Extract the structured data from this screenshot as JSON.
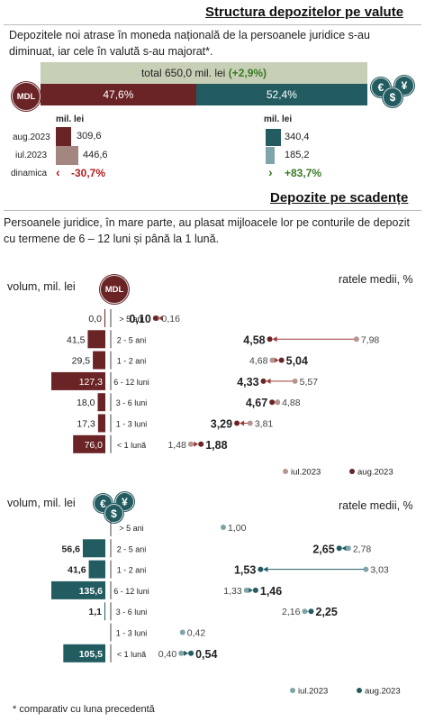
{
  "header": {
    "title": "Structura depozitelor pe valute",
    "intro": "Depozitele noi atrase în moneda națională de la persoanele juridice s-au diminuat, iar cele în valută s-au majorat*.",
    "total_label": "total 650,0 mil. lei",
    "total_change": "(+2,9%)",
    "mdl_share": "47,6%",
    "fx_share": "52,4%",
    "mdl_share_value": 47.6,
    "fx_share_value": 52.4
  },
  "icons": {
    "mdl": "MDL",
    "euro": "€",
    "dollar": "$",
    "yen": "¥"
  },
  "currency_compare": {
    "unit_left": "mil. lei",
    "unit_right": "mil. lei",
    "rows": [
      {
        "label": "aug.2023",
        "mdl": "309,6",
        "fx": "340,4",
        "mdl_v": 309.6,
        "fx_v": 340.4
      },
      {
        "label": "iul.2023",
        "mdl": "446,6",
        "fx": "185,2",
        "mdl_v": 446.6,
        "fx_v": 185.2
      }
    ],
    "dyn_label": "dinamica",
    "dyn_mdl": "-30,7%",
    "dyn_fx": "+83,7%"
  },
  "section2": {
    "title": "Depozite pe scadențe",
    "intro": "Persoanele juridice, în mare parte, au plasat mijloacele lor pe conturile de depozit cu termene de 6 – 12 luni și până la 1 lună."
  },
  "chart_data": [
    {
      "type": "bar",
      "currency": "MDL",
      "left_label": "volum, mil. lei",
      "right_label": "ratele medii, %",
      "categories": [
        "> 5 ani",
        "2 - 5 ani",
        "1 - 2 ani",
        "6 - 12 luni",
        "3 - 6 luni",
        "1 - 3 luni",
        "< 1 lună"
      ],
      "volume": [
        0.0,
        41.5,
        29.5,
        127.3,
        18.0,
        17.3,
        76.0
      ],
      "volume_labels": [
        "0,0",
        "41,5",
        "29,5",
        "127,3",
        "18,0",
        "17,3",
        "76,0"
      ],
      "series": [
        {
          "name": "iul.2023",
          "values": [
            0.16,
            7.98,
            4.68,
            5.57,
            4.88,
            3.81,
            1.48
          ],
          "labels": [
            "0,16",
            "7,98",
            "4,68",
            "5,57",
            "4,88",
            "3,81",
            "1,48"
          ],
          "color": "#b59590"
        },
        {
          "name": "aug.2023",
          "values": [
            0.1,
            4.58,
            5.04,
            4.33,
            4.67,
            3.29,
            1.88
          ],
          "labels": [
            "0,10",
            "4,58",
            "5,04",
            "4,33",
            "4,67",
            "3,29",
            "1,88"
          ],
          "color": "#6b2426"
        }
      ],
      "bar_color": "#6b2426"
    },
    {
      "type": "bar",
      "currency": "FX",
      "left_label": "volum, mil. lei",
      "right_label": "ratele medii, %",
      "categories": [
        "> 5 ani",
        "2 - 5 ani",
        "1 - 2 ani",
        "6 - 12 luni",
        "3 - 6 luni",
        "1 - 3 luni",
        "< 1 lună"
      ],
      "volume": [
        null,
        56.6,
        41.6,
        135.6,
        1.1,
        null,
        105.5
      ],
      "volume_labels": [
        "",
        "56,6",
        "41,6",
        "135,6",
        "1,1",
        "",
        "105,5"
      ],
      "series": [
        {
          "name": "iul.2023",
          "values": [
            1.0,
            2.78,
            3.03,
            1.33,
            2.16,
            0.42,
            0.4
          ],
          "labels": [
            "1,00",
            "2,78",
            "3,03",
            "1,33",
            "2,16",
            "0,42",
            "0,40"
          ],
          "color": "#7fa5aa"
        },
        {
          "name": "aug.2023",
          "values": [
            null,
            2.65,
            1.53,
            1.46,
            2.25,
            null,
            0.54
          ],
          "labels": [
            "",
            "2,65",
            "1,53",
            "1,46",
            "2,25",
            "",
            "0,54"
          ],
          "color": "#225c60"
        }
      ],
      "bar_color": "#225c60"
    }
  ],
  "footnote": "* comparativ cu luna precedentă"
}
